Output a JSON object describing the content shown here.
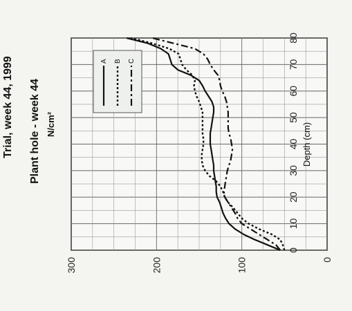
{
  "chart_data": {
    "type": "line",
    "title": "Plant hole - week 44",
    "unit_label": "N/cm²",
    "header_fragment": "Trial, week 44, 1999",
    "xlabel": "Depth (cm)",
    "ylabel": "",
    "xlim": [
      0,
      80
    ],
    "ylim": [
      0,
      300
    ],
    "x_ticks": [
      "0",
      "10",
      "20",
      "30",
      "40",
      "50",
      "60",
      "70",
      "80"
    ],
    "y_ticks": [
      "0",
      "100",
      "200",
      "300"
    ],
    "grid": true,
    "legend_position": "top-right",
    "series": [
      {
        "name": "A",
        "style": "solid",
        "color": "#111111",
        "x": [
          0,
          2,
          4,
          6,
          8,
          10,
          12,
          14,
          16,
          18,
          20,
          22,
          24,
          26,
          28,
          30,
          32,
          34,
          36,
          38,
          40,
          42,
          44,
          46,
          48,
          50,
          52,
          54,
          56,
          58,
          60,
          62,
          64,
          66,
          68,
          70,
          72,
          74,
          76,
          78,
          80
        ],
        "values": [
          55,
          70,
          85,
          98,
          108,
          115,
          119,
          122,
          124,
          126,
          129,
          130,
          130,
          131,
          132,
          133,
          133,
          134,
          135,
          136,
          137,
          137,
          137,
          136,
          135,
          134,
          133,
          133,
          135,
          139,
          143,
          146,
          150,
          160,
          175,
          182,
          184,
          186,
          195,
          210,
          235
        ]
      },
      {
        "name": "B",
        "style": "dotted",
        "color": "#111111",
        "x": [
          0,
          2,
          4,
          6,
          8,
          10,
          12,
          14,
          16,
          18,
          20,
          22,
          24,
          26,
          28,
          30,
          32,
          34,
          36,
          38,
          40,
          42,
          44,
          46,
          48,
          50,
          52,
          54,
          56,
          58,
          60,
          62,
          64,
          66,
          68,
          70,
          72,
          74,
          76,
          78,
          80
        ],
        "values": [
          50,
          52,
          55,
          65,
          80,
          92,
          100,
          105,
          110,
          116,
          120,
          122,
          125,
          130,
          138,
          143,
          146,
          147,
          147,
          146,
          145,
          145,
          146,
          146,
          146,
          146,
          146,
          148,
          150,
          153,
          155,
          156,
          155,
          158,
          165,
          170,
          172,
          174,
          185,
          205,
          230
        ]
      },
      {
        "name": "C",
        "style": "dashdot",
        "color": "#111111",
        "x": [
          0,
          2,
          4,
          6,
          8,
          10,
          12,
          14,
          16,
          18,
          20,
          22,
          24,
          26,
          28,
          30,
          32,
          34,
          36,
          38,
          40,
          42,
          44,
          46,
          48,
          50,
          52,
          54,
          56,
          58,
          60,
          62,
          64,
          66,
          68,
          70,
          72,
          74,
          76,
          78,
          80
        ],
        "values": [
          55,
          60,
          70,
          80,
          90,
          100,
          105,
          108,
          112,
          116,
          120,
          121,
          120,
          119,
          118,
          117,
          115,
          113,
          112,
          111,
          112,
          113,
          115,
          116,
          116,
          116,
          116,
          117,
          118,
          120,
          123,
          125,
          126,
          128,
          133,
          137,
          140,
          145,
          155,
          180,
          205
        ]
      }
    ]
  }
}
